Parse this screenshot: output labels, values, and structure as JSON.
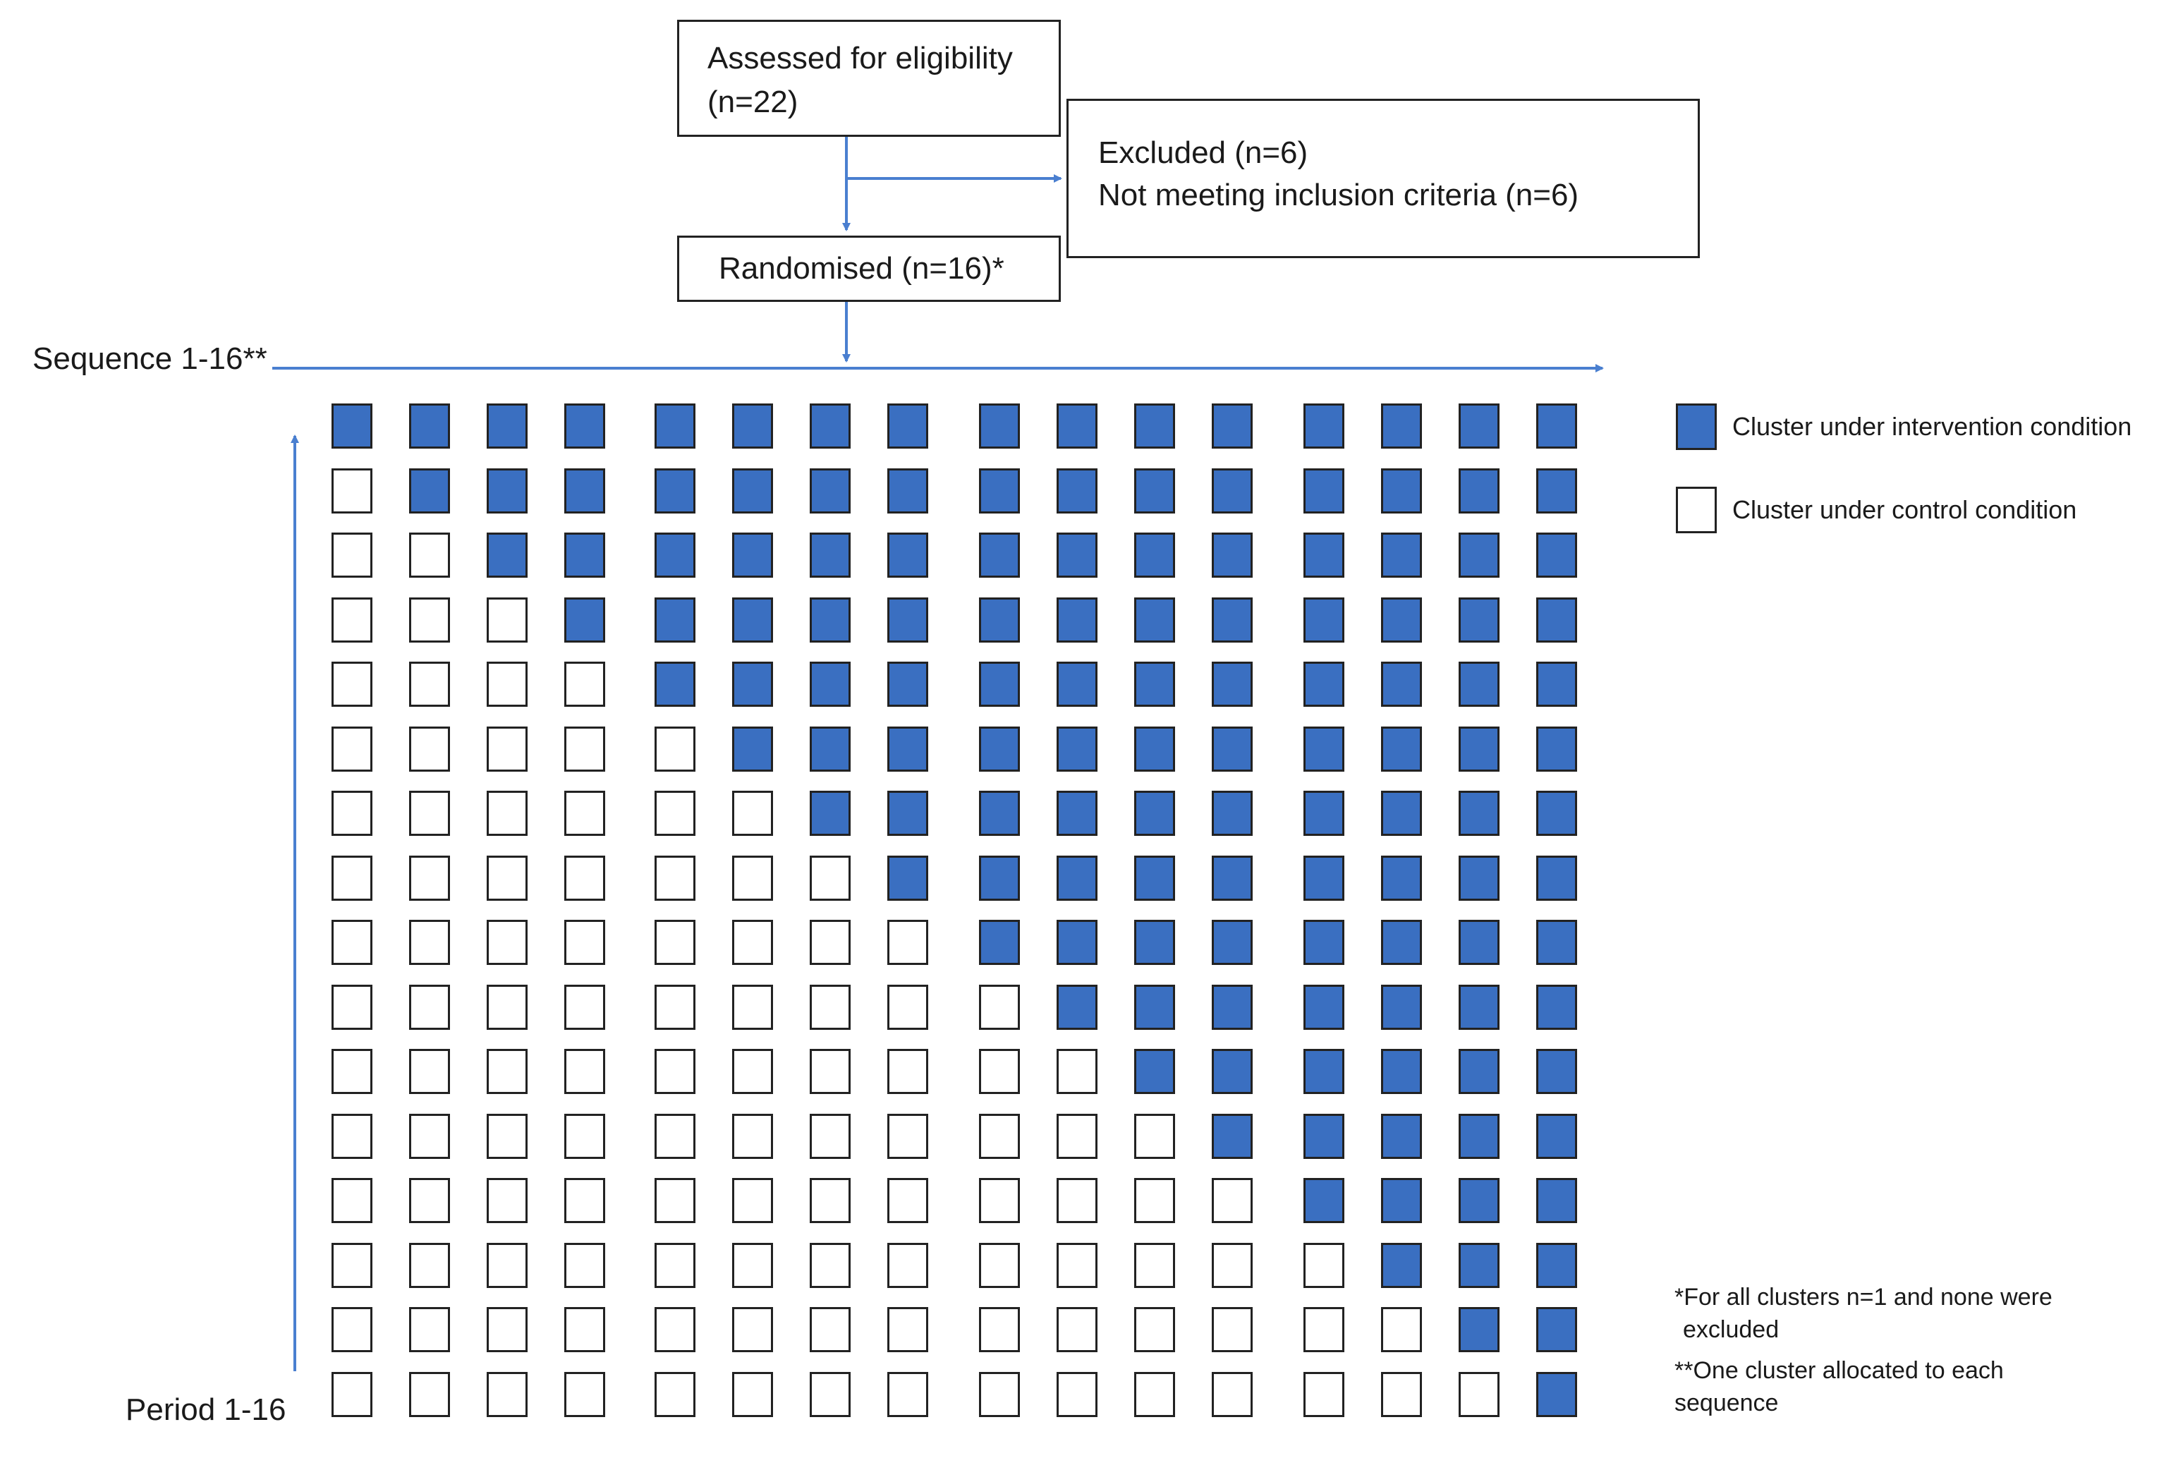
{
  "flow": {
    "assessed": {
      "line1": "Assessed for eligibility",
      "line2": "(n=22)"
    },
    "excluded": {
      "line1": "Excluded (n=6)",
      "line2": "Not meeting inclusion criteria (n=6)"
    },
    "randomised": {
      "label": "Randomised (n=16)*"
    }
  },
  "axes": {
    "sequence_label": "Sequence 1-16**",
    "period_label": "Period 1-16"
  },
  "legend": {
    "intervention": "Cluster under intervention condition",
    "control": "Cluster under control condition"
  },
  "notes": {
    "note1_line1": "*For all clusters n=1 and none were",
    "note1_line2": "excluded",
    "note2_line1": "**One cluster allocated to each",
    "note2_line2": "sequence"
  },
  "colors": {
    "intervention": "#3a6fc1",
    "control": "#ffffff",
    "arrow": "#4a7fd0",
    "border": "#222222"
  },
  "design": {
    "sequences": 16,
    "periods": 16,
    "crossover_rule": "sequence s is under intervention from period (17 - s) onward (period 16 at top)"
  }
}
